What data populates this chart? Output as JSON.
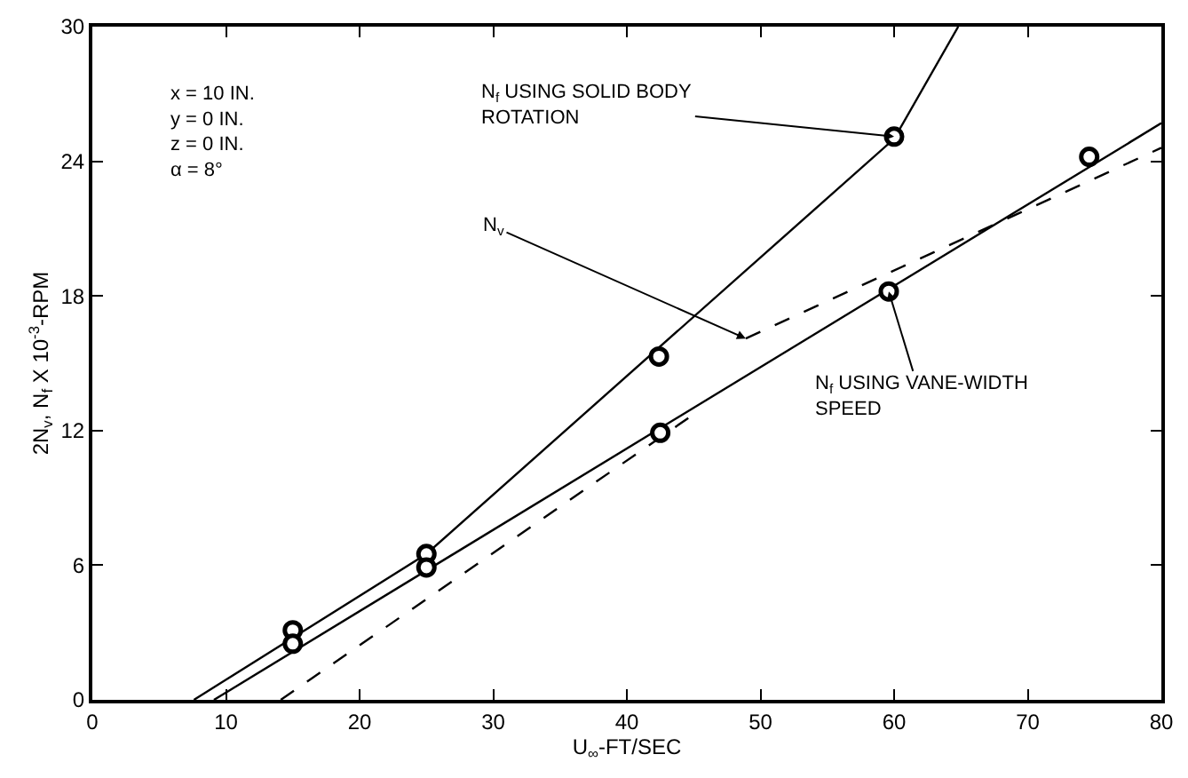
{
  "chart_data": {
    "type": "scatter",
    "xlabel": "U$_{∞}$-FT/SEC",
    "ylabel": "2N$_{v}$, N$_{f}$ X 10$^{-3}$-RPM",
    "xlim": [
      0,
      80
    ],
    "xticks": [
      0,
      10,
      20,
      30,
      40,
      50,
      60,
      70,
      80
    ],
    "ylim": [
      0,
      30
    ],
    "yticks": [
      0,
      6,
      12,
      18,
      24,
      30
    ],
    "series": [
      {
        "type": "line",
        "color": "#000000",
        "marker": "none",
        "line_style": "solid",
        "x": [
          7.6,
          25,
          60,
          64.8
        ],
        "values": [
          0,
          6.5,
          25,
          30
        ]
      },
      {
        "type": "line",
        "color": "#000000",
        "marker": "none",
        "line_style": "solid",
        "x": [
          9.1,
          80
        ],
        "values": [
          0,
          25.7
        ]
      },
      {
        "type": "line",
        "color": "#000000",
        "marker": "none",
        "line_style": "dashed",
        "x": [
          14.1,
          44.7,
          null,
          48.9,
          80
        ],
        "values": [
          0,
          12.6,
          null,
          16.1,
          24.6
        ]
      },
      {
        "color": "#000000",
        "marker": "circle",
        "x": [
          15,
          25,
          42.4,
          60
        ],
        "values": [
          3.1,
          6.5,
          15.3,
          25.1
        ]
      },
      {
        "color": "#000000",
        "marker": "circle",
        "x": [
          15,
          25,
          42.5,
          59.6,
          74.6
        ],
        "values": [
          2.5,
          5.9,
          11.9,
          18.2,
          24.2
        ]
      }
    ],
    "annotations": [
      "x = 10 IN.\ny = 0 IN.\nz = 0 IN.\nα = 8°",
      {
        "text": "N$_{f}$ USING SOLID BODY\nROTATION",
        "x": 60,
        "y": 25.1
      },
      {
        "text": "N$_{v}$",
        "x": 48.9,
        "y": 16.1
      },
      {
        "text": "N$_{f}$ USING VANE-WIDTH\nSPEED",
        "x": 59.6,
        "y": 18.2
      }
    ]
  }
}
